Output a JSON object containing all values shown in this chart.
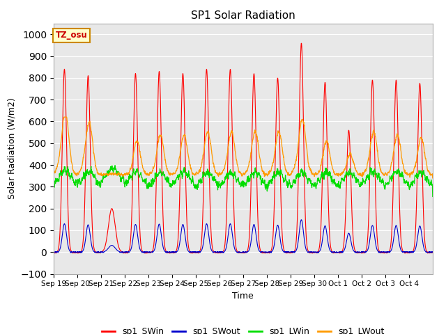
{
  "title": "SP1 Solar Radiation",
  "xlabel": "Time",
  "ylabel": "Solar Radiation (W/m2)",
  "ylim": [
    -100,
    1050
  ],
  "yticks": [
    -100,
    0,
    100,
    200,
    300,
    400,
    500,
    600,
    700,
    800,
    900,
    1000
  ],
  "colors": {
    "SWin": "#ff0000",
    "SWout": "#0000cc",
    "LWin": "#00dd00",
    "LWout": "#ff9900"
  },
  "tz_label": "TZ_osu",
  "tz_box_color": "#ffffcc",
  "tz_border_color": "#cc8800",
  "tz_text_color": "#cc0000",
  "background_color": "#e8e8e8",
  "legend_labels": [
    "sp1_SWin",
    "sp1_SWout",
    "sp1_LWin",
    "sp1_LWout"
  ],
  "tick_labels": [
    "Sep 19",
    "Sep 20",
    "Sep 21",
    "Sep 22",
    "Sep 23",
    "Sep 24",
    "Sep 25",
    "Sep 26",
    "Sep 27",
    "Sep 28",
    "Sep 29",
    "Sep 30",
    "Oct 1",
    "Oct 2",
    "Oct 3",
    "Oct 4"
  ],
  "SWin_peaks": [
    840,
    810,
    200,
    820,
    830,
    820,
    840,
    840,
    820,
    800,
    960,
    780,
    560,
    790,
    790,
    775
  ],
  "SWout_scale": 0.155,
  "LWin_base": 305,
  "LWout_base": 355
}
